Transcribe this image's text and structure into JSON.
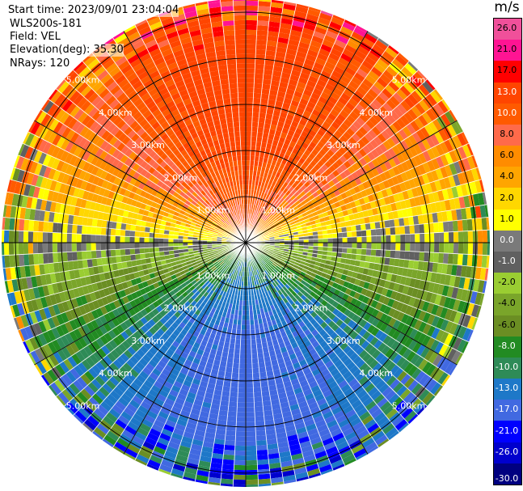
{
  "header": {
    "start_time": "Start time: 2023/09/01 23:04:04",
    "instrument": "WLS200s-181",
    "field": "Field: VEL",
    "elevation": "Elevation(deg): 35.30",
    "nrays": "NRays: 120"
  },
  "colors": {
    "ring_line": "#000000",
    "spoke_line": "#ffffff",
    "ring_label": "#ffffff"
  },
  "chart_data": {
    "type": "polar-ppi",
    "field": "VEL",
    "unit": "m/s",
    "n_rays": 120,
    "max_range_km": 5.3,
    "range_rings_km": [
      1,
      2,
      3,
      4,
      5
    ],
    "ring_labels": [
      "1.00km",
      "2.00km",
      "3.00km",
      "4.00km",
      "5.00km"
    ],
    "colorbar": {
      "unit": "m/s",
      "ticks": [
        "26.0",
        "21.0",
        "17.0",
        "13.0",
        "10.0",
        "8.0",
        "6.0",
        "4.0",
        "2.0",
        "1.0",
        "0.0",
        "-1.0",
        "-2.0",
        "-4.0",
        "-6.0",
        "-8.0",
        "-10.0",
        "-13.0",
        "-17.0",
        "-21.0",
        "-26.0",
        "-30.0"
      ],
      "bins": [
        {
          "min": 26,
          "max": 30,
          "color": "#f0509a"
        },
        {
          "min": 21,
          "max": 26,
          "color": "#ff1493"
        },
        {
          "min": 17,
          "max": 21,
          "color": "#ff0000"
        },
        {
          "min": 13,
          "max": 17,
          "color": "#ff4500"
        },
        {
          "min": 10,
          "max": 13,
          "color": "#ff5a00"
        },
        {
          "min": 8,
          "max": 10,
          "color": "#ff6a4a"
        },
        {
          "min": 6,
          "max": 8,
          "color": "#ff8c00"
        },
        {
          "min": 4,
          "max": 6,
          "color": "#ffa500"
        },
        {
          "min": 2,
          "max": 4,
          "color": "#ffd700"
        },
        {
          "min": 1,
          "max": 2,
          "color": "#ffff00"
        },
        {
          "min": 0,
          "max": 1,
          "color": "#7a7a7a"
        },
        {
          "min": -1,
          "max": 0,
          "color": "#606060"
        },
        {
          "min": -2,
          "max": -1,
          "color": "#9acd32"
        },
        {
          "min": -4,
          "max": -2,
          "color": "#7aa52a"
        },
        {
          "min": -6,
          "max": -4,
          "color": "#6b8e23"
        },
        {
          "min": -8,
          "max": -6,
          "color": "#228b22"
        },
        {
          "min": -10,
          "max": -8,
          "color": "#2e8b57"
        },
        {
          "min": -13,
          "max": -10,
          "color": "#1e78c8"
        },
        {
          "min": -17,
          "max": -13,
          "color": "#4169e1"
        },
        {
          "min": -21,
          "max": -17,
          "color": "#0000ff"
        },
        {
          "min": -26,
          "max": -21,
          "color": "#0000cd"
        },
        {
          "min": -30,
          "max": -26,
          "color": "#000080"
        }
      ]
    },
    "pattern": {
      "description_values": "Approximate radial velocity field: positive (receding) to the north, negative (approaching) to the south; zero-isodop runs roughly east-west through the radar.",
      "peak_positive_ms": 15,
      "peak_negative_ms": -15,
      "peak_azimuth_deg": 0
    }
  }
}
